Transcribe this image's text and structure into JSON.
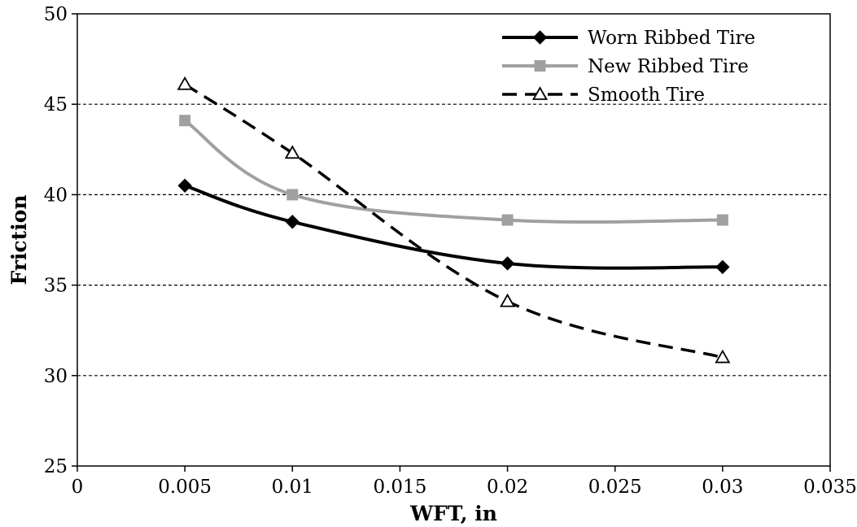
{
  "chart_data": {
    "type": "line",
    "xlabel": "WFT, in",
    "ylabel": "Friction",
    "xlim": [
      0,
      0.035
    ],
    "ylim": [
      25,
      50
    ],
    "x_ticks": [
      "0",
      "0.005",
      "0.01",
      "0.015",
      "0.02",
      "0.025",
      "0.03",
      "0.035"
    ],
    "y_ticks": [
      "25",
      "30",
      "35",
      "40",
      "45",
      "50"
    ],
    "grid": "horizontal dashed at 30, 35, 40, 45",
    "legend_position": "top-right",
    "series": [
      {
        "name": "Worn Ribbed Tire",
        "color": "#000000",
        "line_style": "solid",
        "marker": "diamond-filled",
        "x": [
          0.005,
          0.01,
          0.02,
          0.03
        ],
        "values": [
          40.5,
          38.5,
          36.2,
          36.0
        ]
      },
      {
        "name": "New Ribbed Tire",
        "color": "#a0a0a0",
        "line_style": "solid",
        "marker": "square-filled",
        "x": [
          0.005,
          0.01,
          0.02,
          0.03
        ],
        "values": [
          44.1,
          40.0,
          38.6,
          38.6
        ]
      },
      {
        "name": "Smooth Tire",
        "color": "#000000",
        "line_style": "dashed",
        "marker": "triangle-open",
        "x": [
          0.005,
          0.01,
          0.02,
          0.03
        ],
        "values": [
          46.1,
          42.3,
          34.1,
          31.0
        ]
      }
    ]
  }
}
